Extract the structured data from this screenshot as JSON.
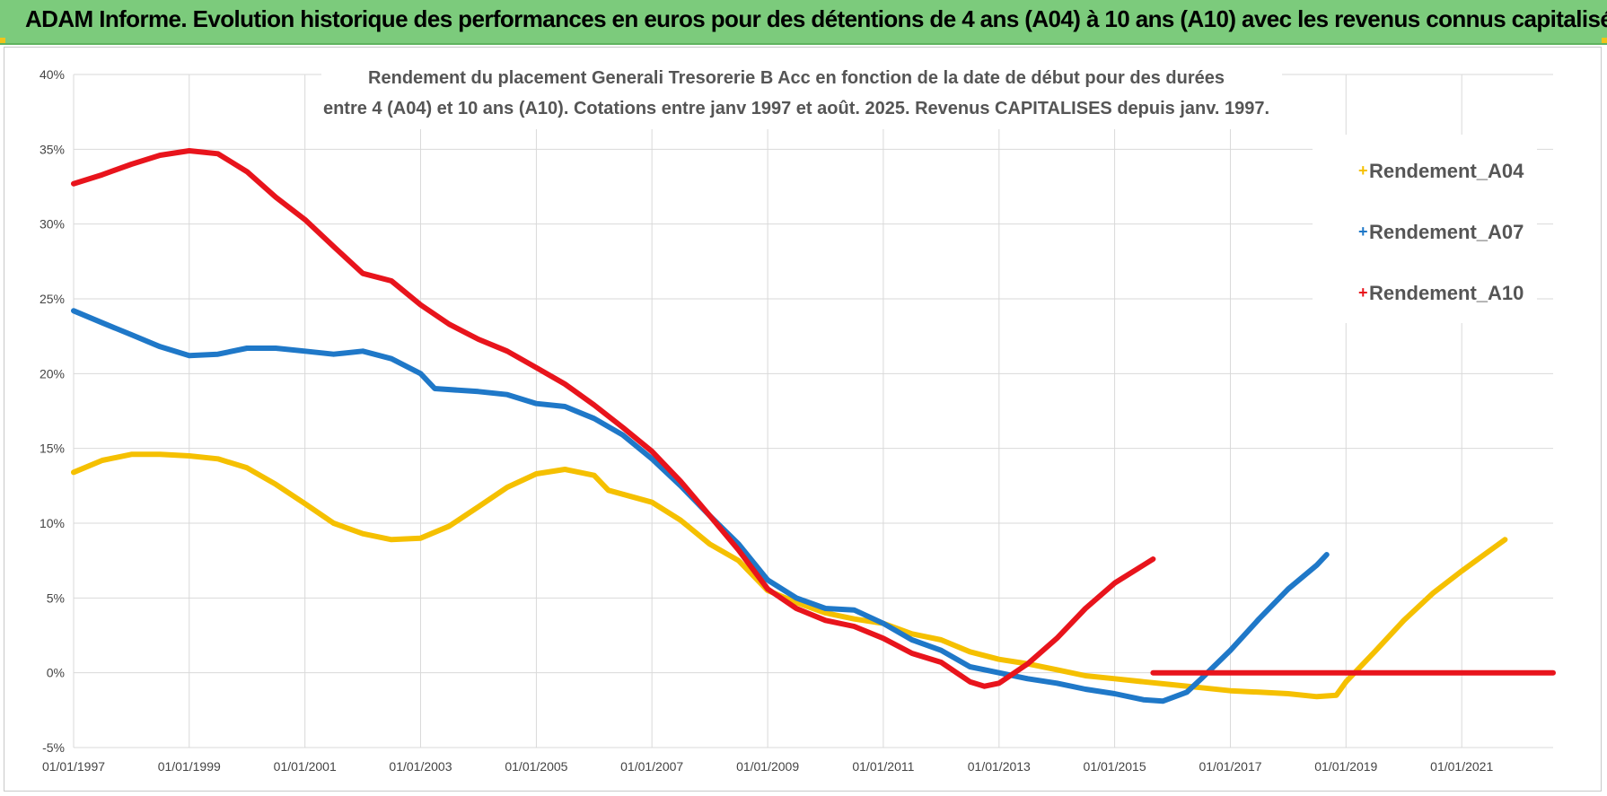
{
  "header": {
    "title": "ADAM Informe. Evolution historique des performances en euros pour des détentions de 4 ans (A04) à 10 ans (A10) avec les revenus connus capitalisés"
  },
  "colors": {
    "header_bg": "#7ccb7c",
    "A04": "#f5c000",
    "A07": "#1f78c8",
    "A10": "#e8141c",
    "grid": "#d9d9d9"
  },
  "chart_data": {
    "type": "line",
    "title_lines": [
      "Rendement du placement Generali Tresorerie B Acc en fonction de la date de début pour des durées",
      "entre 4 (A04) et 10 ans (A10).  Cotations entre janv 1997 et août. 2025. Revenus CAPITALISES depuis janv. 1997."
    ],
    "xlabel": "",
    "ylabel": "",
    "x_ticks": [
      "01/01/1997",
      "01/01/1999",
      "01/01/2001",
      "01/01/2003",
      "01/01/2005",
      "01/01/2007",
      "01/01/2009",
      "01/01/2011",
      "01/01/2013",
      "01/01/2015",
      "01/01/2017",
      "01/01/2019",
      "01/01/2021"
    ],
    "y_ticks": [
      "40%",
      "35%",
      "30%",
      "25%",
      "20%",
      "15%",
      "10%",
      "5%",
      "0%",
      "-5%"
    ],
    "xlim": [
      "1997-01-01",
      "2022-08-01"
    ],
    "ylim": [
      -5,
      40
    ],
    "grid": true,
    "legend_position": "top-right",
    "series": [
      {
        "name": "Rendement_A04",
        "color": "#f5c000",
        "points": [
          [
            "1997-01-01",
            13.4
          ],
          [
            "1997-07-01",
            14.2
          ],
          [
            "1998-01-01",
            14.6
          ],
          [
            "1998-07-01",
            14.6
          ],
          [
            "1999-01-01",
            14.5
          ],
          [
            "1999-07-01",
            14.3
          ],
          [
            "2000-01-01",
            13.7
          ],
          [
            "2000-07-01",
            12.6
          ],
          [
            "2001-01-01",
            11.3
          ],
          [
            "2001-07-01",
            10.0
          ],
          [
            "2002-01-01",
            9.3
          ],
          [
            "2002-07-01",
            8.9
          ],
          [
            "2003-01-01",
            9.0
          ],
          [
            "2003-07-01",
            9.8
          ],
          [
            "2004-01-01",
            11.1
          ],
          [
            "2004-07-01",
            12.4
          ],
          [
            "2005-01-01",
            13.3
          ],
          [
            "2005-07-01",
            13.6
          ],
          [
            "2006-01-01",
            13.2
          ],
          [
            "2006-04-01",
            12.2
          ],
          [
            "2007-01-01",
            11.4
          ],
          [
            "2007-07-01",
            10.2
          ],
          [
            "2008-01-01",
            8.6
          ],
          [
            "2008-07-01",
            7.5
          ],
          [
            "2009-01-01",
            5.5
          ],
          [
            "2009-07-01",
            4.7
          ],
          [
            "2010-01-01",
            4.0
          ],
          [
            "2010-07-01",
            3.6
          ],
          [
            "2011-01-01",
            3.3
          ],
          [
            "2011-07-01",
            2.6
          ],
          [
            "2012-01-01",
            2.2
          ],
          [
            "2012-07-01",
            1.4
          ],
          [
            "2013-01-01",
            0.9
          ],
          [
            "2013-07-01",
            0.6
          ],
          [
            "2014-01-01",
            0.2
          ],
          [
            "2014-07-01",
            -0.2
          ],
          [
            "2015-01-01",
            -0.4
          ],
          [
            "2015-07-01",
            -0.6
          ],
          [
            "2016-01-01",
            -0.8
          ],
          [
            "2016-07-01",
            -1.0
          ],
          [
            "2017-01-01",
            -1.2
          ],
          [
            "2017-07-01",
            -1.3
          ],
          [
            "2018-01-01",
            -1.4
          ],
          [
            "2018-07-01",
            -1.6
          ],
          [
            "2018-11-01",
            -1.5
          ],
          [
            "2019-01-01",
            -0.6
          ],
          [
            "2019-07-01",
            1.4
          ],
          [
            "2020-01-01",
            3.5
          ],
          [
            "2020-07-01",
            5.3
          ],
          [
            "2021-01-01",
            6.8
          ],
          [
            "2021-07-01",
            8.2
          ],
          [
            "2021-10-01",
            8.9
          ]
        ]
      },
      {
        "name": "Rendement_A07",
        "color": "#1f78c8",
        "points": [
          [
            "1997-01-01",
            24.2
          ],
          [
            "1997-07-01",
            23.4
          ],
          [
            "1998-01-01",
            22.6
          ],
          [
            "1998-07-01",
            21.8
          ],
          [
            "1999-01-01",
            21.2
          ],
          [
            "1999-07-01",
            21.3
          ],
          [
            "2000-01-01",
            21.7
          ],
          [
            "2000-07-01",
            21.7
          ],
          [
            "2001-01-01",
            21.5
          ],
          [
            "2001-07-01",
            21.3
          ],
          [
            "2002-01-01",
            21.5
          ],
          [
            "2002-07-01",
            21.0
          ],
          [
            "2003-01-01",
            20.0
          ],
          [
            "2003-04-01",
            19.0
          ],
          [
            "2004-01-01",
            18.8
          ],
          [
            "2004-07-01",
            18.6
          ],
          [
            "2005-01-01",
            18.0
          ],
          [
            "2005-07-01",
            17.8
          ],
          [
            "2006-01-01",
            17.0
          ],
          [
            "2006-07-01",
            15.9
          ],
          [
            "2007-01-01",
            14.3
          ],
          [
            "2007-07-01",
            12.5
          ],
          [
            "2008-01-01",
            10.5
          ],
          [
            "2008-07-01",
            8.6
          ],
          [
            "2009-01-01",
            6.2
          ],
          [
            "2009-07-01",
            5.0
          ],
          [
            "2010-01-01",
            4.3
          ],
          [
            "2010-07-01",
            4.2
          ],
          [
            "2011-01-01",
            3.3
          ],
          [
            "2011-07-01",
            2.2
          ],
          [
            "2012-01-01",
            1.5
          ],
          [
            "2012-07-01",
            0.4
          ],
          [
            "2013-01-01",
            0.0
          ],
          [
            "2013-07-01",
            -0.4
          ],
          [
            "2014-01-01",
            -0.7
          ],
          [
            "2014-07-01",
            -1.1
          ],
          [
            "2015-01-01",
            -1.4
          ],
          [
            "2015-07-01",
            -1.8
          ],
          [
            "2015-11-01",
            -1.9
          ],
          [
            "2016-04-01",
            -1.3
          ],
          [
            "2016-07-01",
            -0.4
          ],
          [
            "2017-01-01",
            1.5
          ],
          [
            "2017-07-01",
            3.6
          ],
          [
            "2018-01-01",
            5.6
          ],
          [
            "2018-07-01",
            7.2
          ],
          [
            "2018-09-01",
            7.9
          ]
        ]
      },
      {
        "name": "Rendement_A10",
        "color": "#e8141c",
        "points": [
          [
            "1997-01-01",
            32.7
          ],
          [
            "1997-07-01",
            33.3
          ],
          [
            "1998-01-01",
            34.0
          ],
          [
            "1998-07-01",
            34.6
          ],
          [
            "1999-01-01",
            34.9
          ],
          [
            "1999-07-01",
            34.7
          ],
          [
            "2000-01-01",
            33.5
          ],
          [
            "2000-07-01",
            31.8
          ],
          [
            "2001-01-01",
            30.3
          ],
          [
            "2001-07-01",
            28.5
          ],
          [
            "2002-01-01",
            26.7
          ],
          [
            "2002-07-01",
            26.2
          ],
          [
            "2003-01-01",
            24.6
          ],
          [
            "2003-07-01",
            23.3
          ],
          [
            "2004-01-01",
            22.3
          ],
          [
            "2004-07-01",
            21.5
          ],
          [
            "2005-01-01",
            20.4
          ],
          [
            "2005-07-01",
            19.3
          ],
          [
            "2006-01-01",
            17.9
          ],
          [
            "2006-07-01",
            16.4
          ],
          [
            "2007-01-01",
            14.8
          ],
          [
            "2007-07-01",
            12.8
          ],
          [
            "2008-01-01",
            10.5
          ],
          [
            "2008-07-01",
            8.2
          ],
          [
            "2009-01-01",
            5.6
          ],
          [
            "2009-07-01",
            4.3
          ],
          [
            "2010-01-01",
            3.5
          ],
          [
            "2010-07-01",
            3.1
          ],
          [
            "2011-01-01",
            2.3
          ],
          [
            "2011-07-01",
            1.3
          ],
          [
            "2012-01-01",
            0.7
          ],
          [
            "2012-07-01",
            -0.6
          ],
          [
            "2012-10-01",
            -0.9
          ],
          [
            "2013-01-01",
            -0.7
          ],
          [
            "2013-07-01",
            0.6
          ],
          [
            "2014-01-01",
            2.3
          ],
          [
            "2014-07-01",
            4.3
          ],
          [
            "2015-01-01",
            6.0
          ],
          [
            "2015-09-01",
            7.6
          ]
        ]
      },
      {
        "name": "Rendement_A10",
        "color": "#e8141c",
        "points": [
          [
            "2015-09-01",
            0.0
          ],
          [
            "2022-08-01",
            0.0
          ]
        ]
      }
    ]
  },
  "legend": [
    {
      "label": "Rendement_A04",
      "color": "#f5c000"
    },
    {
      "label": "Rendement_A07",
      "color": "#1f78c8"
    },
    {
      "label": "Rendement_A10",
      "color": "#e8141c"
    }
  ]
}
